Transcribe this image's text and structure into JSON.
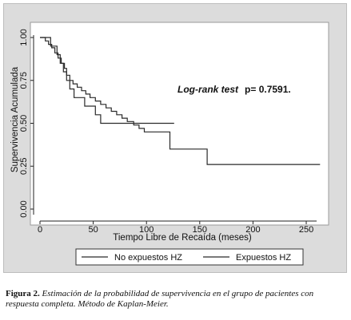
{
  "chart_data": {
    "type": "line",
    "step": true,
    "xlabel": "Tiempo Libre de Recaída (meses)",
    "ylabel": "Supervivencia Acumulada",
    "xlim": [
      0,
      265
    ],
    "ylim": [
      0,
      1
    ],
    "x_ticks": [
      0,
      50,
      100,
      150,
      200,
      250
    ],
    "x_tick_labels": [
      "0",
      "50",
      "100",
      "150",
      "200",
      "250"
    ],
    "y_ticks": [
      0,
      0.25,
      0.5,
      0.75,
      1
    ],
    "y_tick_labels": [
      "0.00",
      "0.25",
      "0.50",
      "0.75",
      "1.00"
    ],
    "grid": false,
    "legend_position": "bottom",
    "annotation": {
      "label": "Log-rank test",
      "value": "p= 0.7591."
    },
    "series": [
      {
        "name": "No expuestos HZ",
        "color": "#2a2a2a",
        "points": [
          [
            0,
            1.0
          ],
          [
            5,
            1.0
          ],
          [
            5,
            0.98
          ],
          [
            8,
            0.98
          ],
          [
            8,
            0.96
          ],
          [
            11,
            0.96
          ],
          [
            11,
            0.94
          ],
          [
            14,
            0.94
          ],
          [
            14,
            0.91
          ],
          [
            17,
            0.91
          ],
          [
            17,
            0.88
          ],
          [
            20,
            0.88
          ],
          [
            20,
            0.85
          ],
          [
            23,
            0.85
          ],
          [
            23,
            0.82
          ],
          [
            25,
            0.82
          ],
          [
            25,
            0.78
          ],
          [
            28,
            0.78
          ],
          [
            28,
            0.75
          ],
          [
            31,
            0.75
          ],
          [
            31,
            0.73
          ],
          [
            35,
            0.73
          ],
          [
            35,
            0.71
          ],
          [
            39,
            0.71
          ],
          [
            39,
            0.69
          ],
          [
            43,
            0.69
          ],
          [
            43,
            0.67
          ],
          [
            47,
            0.67
          ],
          [
            47,
            0.65
          ],
          [
            52,
            0.65
          ],
          [
            52,
            0.63
          ],
          [
            57,
            0.63
          ],
          [
            57,
            0.61
          ],
          [
            62,
            0.61
          ],
          [
            62,
            0.59
          ],
          [
            67,
            0.59
          ],
          [
            67,
            0.57
          ],
          [
            72,
            0.57
          ],
          [
            72,
            0.55
          ],
          [
            77,
            0.55
          ],
          [
            77,
            0.53
          ],
          [
            82,
            0.53
          ],
          [
            82,
            0.51
          ],
          [
            88,
            0.51
          ],
          [
            88,
            0.49
          ],
          [
            93,
            0.49
          ],
          [
            93,
            0.47
          ],
          [
            98,
            0.47
          ],
          [
            98,
            0.45
          ],
          [
            122,
            0.45
          ],
          [
            122,
            0.35
          ],
          [
            157,
            0.35
          ],
          [
            157,
            0.26
          ],
          [
            263,
            0.26
          ]
        ]
      },
      {
        "name": "Expuestos HZ",
        "color": "#2a2a2a",
        "points": [
          [
            0,
            1.0
          ],
          [
            10,
            1.0
          ],
          [
            10,
            0.95
          ],
          [
            16,
            0.95
          ],
          [
            16,
            0.9
          ],
          [
            19,
            0.9
          ],
          [
            19,
            0.85
          ],
          [
            22,
            0.85
          ],
          [
            22,
            0.8
          ],
          [
            25,
            0.8
          ],
          [
            25,
            0.75
          ],
          [
            28,
            0.75
          ],
          [
            28,
            0.7
          ],
          [
            32,
            0.7
          ],
          [
            32,
            0.65
          ],
          [
            42,
            0.65
          ],
          [
            42,
            0.6
          ],
          [
            52,
            0.6
          ],
          [
            52,
            0.55
          ],
          [
            57,
            0.55
          ],
          [
            57,
            0.5
          ],
          [
            126,
            0.5
          ]
        ]
      }
    ]
  },
  "caption": {
    "label": "Figura 2.",
    "text": "Estimación de la probabilidad de supervivencia en el grupo de pacientes con respuesta completa. Método de Kaplan-Meier."
  }
}
